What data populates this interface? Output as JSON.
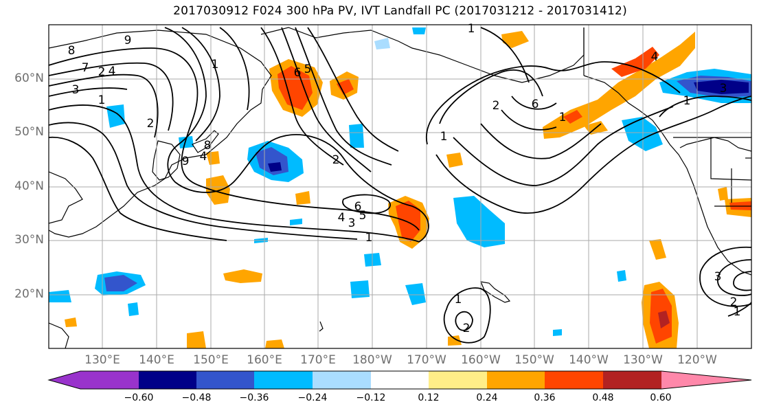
{
  "title": "2017030912 F024 300 hPa PV, IVT Landfall PC (2017031212 - 2017031412)",
  "lat_labels": [
    "60°N",
    "50°N",
    "40°N",
    "30°N",
    "20°N"
  ],
  "lon_labels": [
    "130°E",
    "140°E",
    "150°E",
    "160°E",
    "170°E",
    "180°W",
    "170°W",
    "160°W",
    "150°W",
    "140°W",
    "130°W",
    "120°W"
  ],
  "colorbar": {
    "ticks": [
      "−0.60",
      "−0.48",
      "−0.36",
      "−0.24",
      "−0.12",
      "0.12",
      "0.24",
      "0.36",
      "0.48",
      "0.60"
    ],
    "colors": [
      "#9933cc",
      "#000088",
      "#3355cc",
      "#00bbff",
      "#aaddff",
      "#ffffff",
      "#ffee88",
      "#ffa500",
      "#ff4500",
      "#b22222",
      "#ff88aa"
    ]
  },
  "contour_labels": [
    "8",
    "9",
    "7",
    "2",
    "4",
    "3",
    "1",
    "2",
    "1",
    "6",
    "5",
    "9",
    "8",
    "4",
    "2",
    "6",
    "5",
    "4",
    "3",
    "1",
    "1",
    "1",
    "2",
    "6",
    "1",
    "1",
    "4",
    "3",
    "3",
    "1",
    "2",
    "1",
    "2"
  ],
  "colors": {
    "coast": "#000000",
    "grid": "#aaaaaa",
    "contour": "#000000",
    "axis_label": "#6e6e6e"
  }
}
